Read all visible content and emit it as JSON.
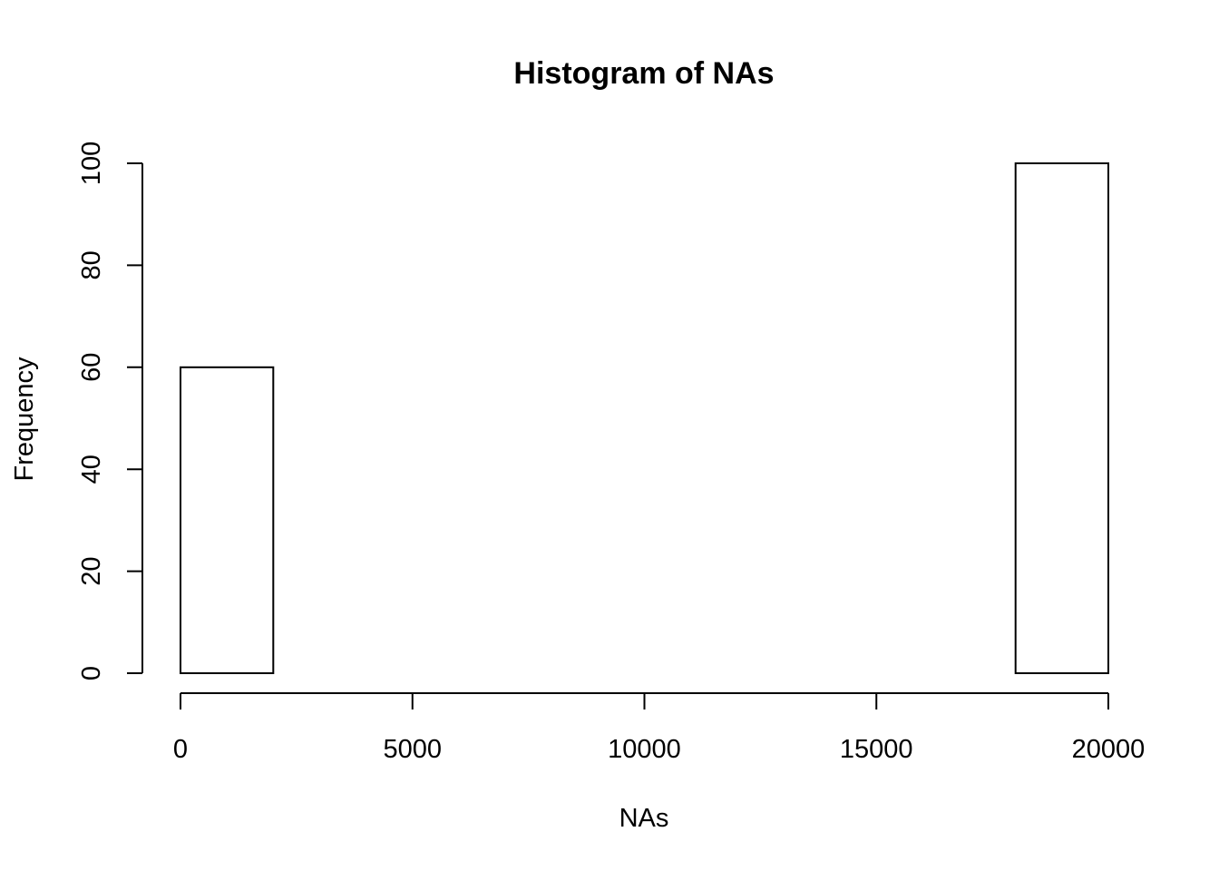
{
  "chart_data": {
    "type": "bar",
    "title": "Histogram of NAs",
    "xlabel": "NAs",
    "ylabel": "Frequency",
    "bins": [
      {
        "start": 0,
        "end": 2000,
        "count": 60
      },
      {
        "start": 2000,
        "end": 4000,
        "count": 0
      },
      {
        "start": 4000,
        "end": 6000,
        "count": 0
      },
      {
        "start": 6000,
        "end": 8000,
        "count": 0
      },
      {
        "start": 8000,
        "end": 10000,
        "count": 0
      },
      {
        "start": 10000,
        "end": 12000,
        "count": 0
      },
      {
        "start": 12000,
        "end": 14000,
        "count": 0
      },
      {
        "start": 14000,
        "end": 16000,
        "count": 0
      },
      {
        "start": 16000,
        "end": 18000,
        "count": 0
      },
      {
        "start": 18000,
        "end": 20000,
        "count": 100
      }
    ],
    "xlim": [
      0,
      20000
    ],
    "ylim": [
      0,
      100
    ],
    "xticks": [
      "0",
      "5000",
      "10000",
      "15000",
      "20000"
    ],
    "yticks": [
      "0",
      "20",
      "40",
      "60",
      "80",
      "100"
    ],
    "grid": false
  }
}
